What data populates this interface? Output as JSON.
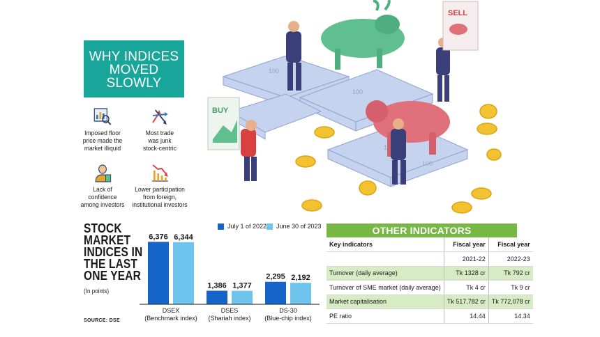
{
  "header": {
    "title_lines": [
      "WHY INDICES",
      "MOVED",
      "SLOWLY"
    ]
  },
  "reasons": [
    {
      "icon": "chart-magnifier-icon",
      "lines": [
        "Imposed floor",
        "price made the",
        "market illiquid"
      ]
    },
    {
      "icon": "scattered-arrows-icon",
      "lines": [
        "Most trade",
        "was junk",
        "stock-centric"
      ]
    },
    {
      "icon": "worried-investor-icon",
      "lines": [
        "Lack of",
        "confidence",
        "among investors"
      ]
    },
    {
      "icon": "falling-chart-icon",
      "lines": [
        "Lower participation",
        "from foreign,",
        "institutional investors"
      ]
    }
  ],
  "illustration": {
    "buy_sign": "BUY",
    "sell_sign": "SELL",
    "note_label": "100"
  },
  "chart": {
    "title_lines": [
      "STOCK",
      "MARKET",
      "INDICES IN",
      "THE LAST",
      "ONE YEAR"
    ],
    "unit": "(In points)",
    "source": "SOURCE: DSE"
  },
  "chart_data": {
    "type": "bar",
    "categories": [
      "DSEX",
      "DSES",
      "DS-30"
    ],
    "category_sublabels": [
      "(Benchmark index)",
      "(Shariah index)",
      "(Blue-chip index)"
    ],
    "series": [
      {
        "name": "July 1 of 2022",
        "color": "#1565c8",
        "values": [
          6376,
          1386,
          2295
        ],
        "labels": [
          "6,376",
          "1,386",
          "2,295"
        ]
      },
      {
        "name": "June 30 of 2023",
        "color": "#6ec4ec",
        "values": [
          6344,
          1377,
          2192
        ],
        "labels": [
          "6,344",
          "1,377",
          "2,192"
        ]
      }
    ],
    "unit": "(In points)",
    "legend_position": "top"
  },
  "other_indicators": {
    "title": "OTHER INDICATORS",
    "columns": [
      "Key indicators",
      "Fiscal year",
      "Fiscal year"
    ],
    "years": [
      "",
      "2021-22",
      "2022-23"
    ],
    "rows": [
      {
        "label": "Turnover (daily average)",
        "fy1": "Tk 1328 cr",
        "fy2": "Tk 792 cr"
      },
      {
        "label": "Turnover of SME market (daily average)",
        "fy1": "Tk 4 cr",
        "fy2": "Tk 9 cr"
      },
      {
        "label": "Market capitalisation",
        "fy1": "Tk 517,782 cr",
        "fy2": "Tk 772,078 cr"
      },
      {
        "label": "PE ratio",
        "fy1": "14.44",
        "fy2": "14.34"
      }
    ]
  }
}
